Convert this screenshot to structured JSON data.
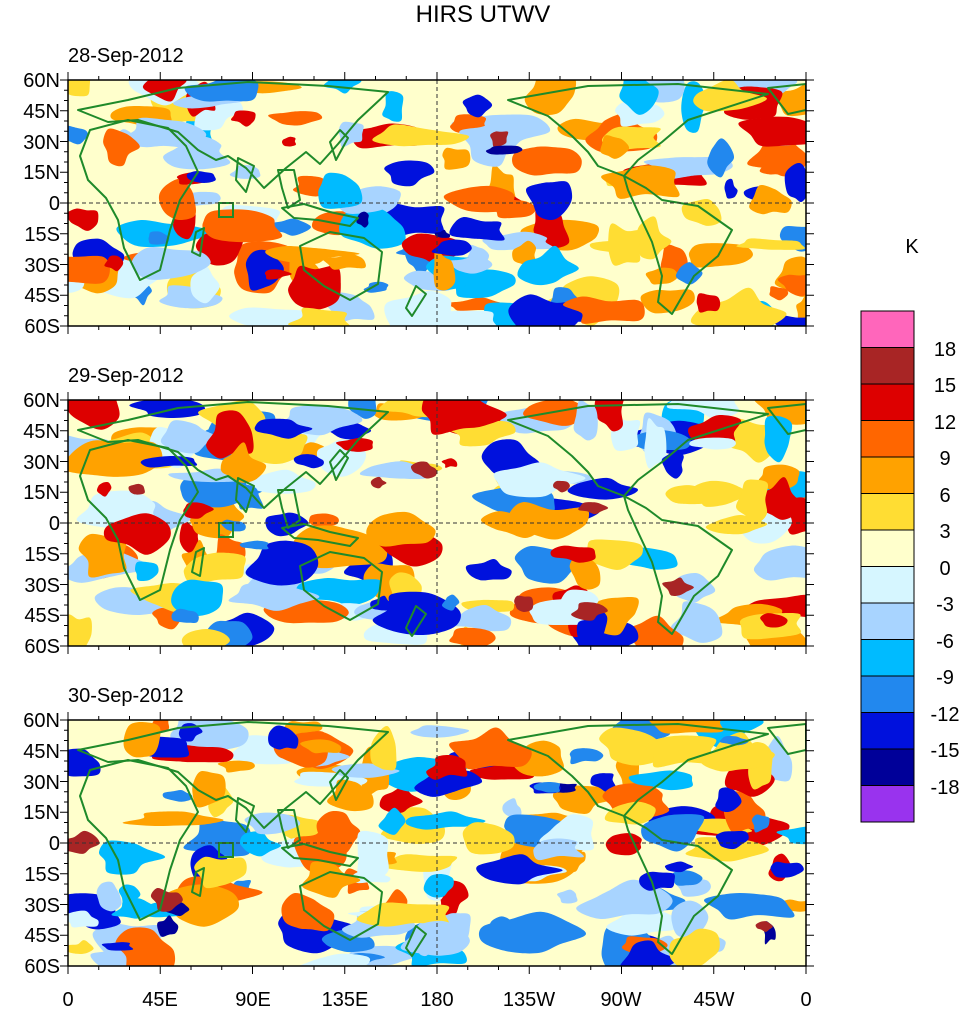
{
  "title": "HIRS UTWV",
  "panels": [
    {
      "date": "28-Sep-2012"
    },
    {
      "date": "29-Sep-2012"
    },
    {
      "date": "30-Sep-2012"
    }
  ],
  "lat_labels": [
    "60N",
    "45N",
    "30N",
    "15N",
    "0",
    "15S",
    "30S",
    "45S",
    "60S"
  ],
  "lon_labels": [
    "0",
    "45E",
    "90E",
    "135E",
    "180",
    "135W",
    "90W",
    "45W",
    "0"
  ],
  "colorbar": {
    "unit": "K",
    "labels": [
      "18",
      "15",
      "12",
      "9",
      "6",
      "3",
      "0",
      "-3",
      "-6",
      "-9",
      "-12",
      "-15",
      "-18"
    ],
    "colors": [
      "#ff66bb",
      "#a82525",
      "#dd0000",
      "#ff6600",
      "#ffa200",
      "#ffdd33",
      "#ffffcc",
      "#d6f6ff",
      "#a8d4ff",
      "#00bbff",
      "#2288ee",
      "#0011dd",
      "#000099",
      "#9933ee"
    ]
  },
  "map_colors": {
    "coast": "#1f8a2a",
    "frame": "#000000",
    "ref_line": "#333333"
  }
}
